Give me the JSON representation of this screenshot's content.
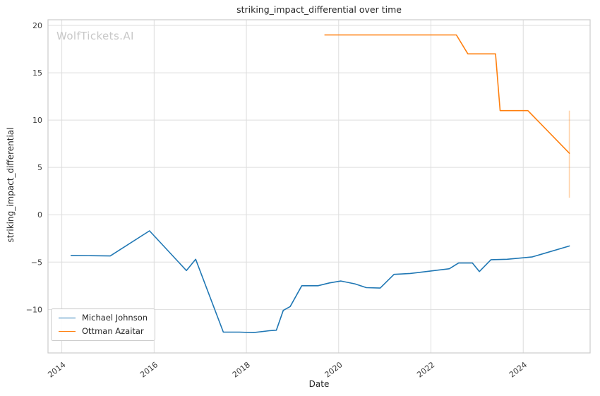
{
  "figure": {
    "watermark": "WolfTickets.AI"
  },
  "chart_data": {
    "type": "line",
    "title": "striking_impact_differential over time",
    "xlabel": "Date",
    "ylabel": "striking_impact_differential",
    "xlim": [
      2013.7,
      2025.45
    ],
    "ylim": [
      -14.6,
      20.6
    ],
    "xticks": [
      2014,
      2016,
      2018,
      2020,
      2022,
      2024
    ],
    "yticks": [
      -10,
      -5,
      0,
      5,
      10,
      15,
      20
    ],
    "grid": true,
    "legend_position": "lower left",
    "series": [
      {
        "name": "Michael Johnson",
        "color": "#1f77b4",
        "points": [
          [
            2014.2,
            -4.3
          ],
          [
            2015.05,
            -4.35
          ],
          [
            2015.9,
            -1.7
          ],
          [
            2016.7,
            -5.9
          ],
          [
            2016.9,
            -4.7
          ],
          [
            2017.5,
            -12.4
          ],
          [
            2017.85,
            -12.4
          ],
          [
            2018.15,
            -12.45
          ],
          [
            2018.5,
            -12.25
          ],
          [
            2018.65,
            -12.2
          ],
          [
            2018.8,
            -10.1
          ],
          [
            2018.95,
            -9.7
          ],
          [
            2019.2,
            -7.5
          ],
          [
            2019.55,
            -7.5
          ],
          [
            2019.8,
            -7.2
          ],
          [
            2020.05,
            -7.0
          ],
          [
            2020.35,
            -7.3
          ],
          [
            2020.6,
            -7.7
          ],
          [
            2020.9,
            -7.75
          ],
          [
            2021.2,
            -6.3
          ],
          [
            2021.55,
            -6.2
          ],
          [
            2021.9,
            -6.0
          ],
          [
            2022.15,
            -5.85
          ],
          [
            2022.4,
            -5.7
          ],
          [
            2022.6,
            -5.1
          ],
          [
            2022.9,
            -5.1
          ],
          [
            2023.05,
            -6.0
          ],
          [
            2023.3,
            -4.75
          ],
          [
            2023.65,
            -4.7
          ],
          [
            2024.0,
            -4.55
          ],
          [
            2024.2,
            -4.45
          ],
          [
            2025.0,
            -3.3
          ]
        ]
      },
      {
        "name": "Ottman Azaitar",
        "color": "#ff7f0e",
        "points": [
          [
            2019.7,
            19
          ],
          [
            2022.55,
            19
          ],
          [
            2022.8,
            17
          ],
          [
            2023.4,
            17
          ],
          [
            2023.5,
            11
          ],
          [
            2024.1,
            11
          ],
          [
            2025.0,
            6.5
          ]
        ]
      }
    ],
    "error_bar": {
      "x": 2025.0,
      "y_min": 1.8,
      "y_max": 11.0,
      "color": "#ff7f0e",
      "opacity": 0.35
    },
    "style": {
      "grid_color": "#dddddd",
      "spine_color": "#cccccc",
      "tick_label_color": "#3b3b3b"
    }
  }
}
